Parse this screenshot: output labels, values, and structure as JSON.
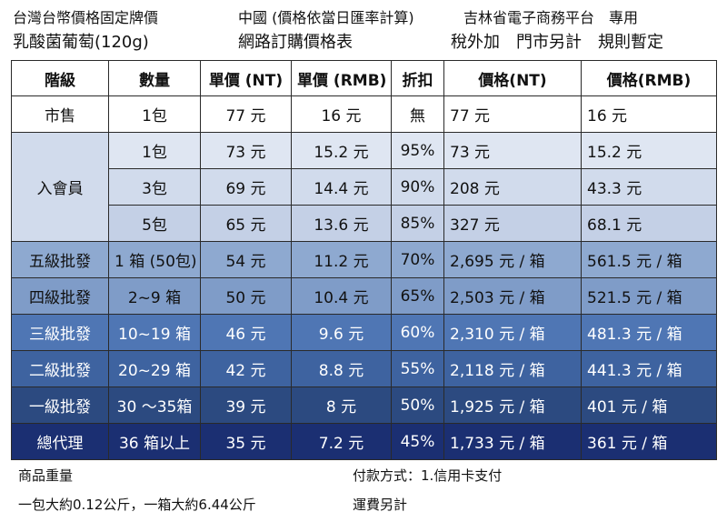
{
  "header": {
    "line1_left": "台灣台幣價格固定牌價",
    "line1_mid": "中國 (價格依當日匯率計算)",
    "line1_right": "吉林省電子商務平台　專用",
    "line2_left": "乳酸菌葡萄(120g)",
    "line2_mid": "網路訂購價格表",
    "line2_right": "稅外加　門市另計　規則暫定"
  },
  "table": {
    "columns": [
      "階級",
      "數量",
      "單價 (NT)",
      "單價 (RMB)",
      "折扣",
      "價格(NT)",
      "價格(RMB)"
    ],
    "member_label": "入會員",
    "rows": [
      {
        "tier": "市售",
        "qty": "1包",
        "unit_nt": "77 元",
        "unit_rmb": "16 元",
        "discount": "無",
        "price_nt": "77 元",
        "price_rmb": "16 元"
      },
      {
        "tier": "",
        "qty": "1包",
        "unit_nt": "73 元",
        "unit_rmb": "15.2 元",
        "discount": "95%",
        "price_nt": "73 元",
        "price_rmb": "15.2 元"
      },
      {
        "tier": "",
        "qty": "3包",
        "unit_nt": "69 元",
        "unit_rmb": "14.4 元",
        "discount": "90%",
        "price_nt": "208 元",
        "price_rmb": "43.3 元"
      },
      {
        "tier": "",
        "qty": "5包",
        "unit_nt": "65 元",
        "unit_rmb": "13.6 元",
        "discount": "85%",
        "price_nt": "327 元",
        "price_rmb": "68.1 元"
      },
      {
        "tier": "五級批發",
        "qty": "1 箱 (50包)",
        "unit_nt": "54 元",
        "unit_rmb": "11.2 元",
        "discount": "70%",
        "price_nt": "2,695 元 / 箱",
        "price_rmb": "561.5 元 / 箱"
      },
      {
        "tier": "四級批發",
        "qty": "2~9 箱",
        "unit_nt": "50 元",
        "unit_rmb": "10.4 元",
        "discount": "65%",
        "price_nt": "2,503 元 / 箱",
        "price_rmb": "521.5 元 / 箱"
      },
      {
        "tier": "三級批發",
        "qty": "10~19 箱",
        "unit_nt": "46 元",
        "unit_rmb": "9.6 元",
        "discount": "60%",
        "price_nt": "2,310 元 / 箱",
        "price_rmb": "481.3 元 / 箱"
      },
      {
        "tier": "二級批發",
        "qty": "20~29 箱",
        "unit_nt": "42 元",
        "unit_rmb": "8.8 元",
        "discount": "55%",
        "price_nt": "2,118 元 / 箱",
        "price_rmb": "441.3 元 / 箱"
      },
      {
        "tier": "一級批發",
        "qty": "30 ～35箱",
        "unit_nt": "39 元",
        "unit_rmb": "8 元",
        "discount": "50%",
        "price_nt": "1,925 元 / 箱",
        "price_rmb": "401 元 / 箱"
      },
      {
        "tier": "總代理",
        "qty": "36 箱以上",
        "unit_nt": "35 元",
        "unit_rmb": "7.2 元",
        "discount": "45%",
        "price_nt": "1,733 元 / 箱",
        "price_rmb": "361 元 / 箱"
      }
    ]
  },
  "footer": {
    "weight_title": "商品重量",
    "weight_detail": "一包大約0.12公斤，一箱大約6.44公斤",
    "payment": "付款方式：1.信用卡支付",
    "shipping": "運費另計"
  }
}
